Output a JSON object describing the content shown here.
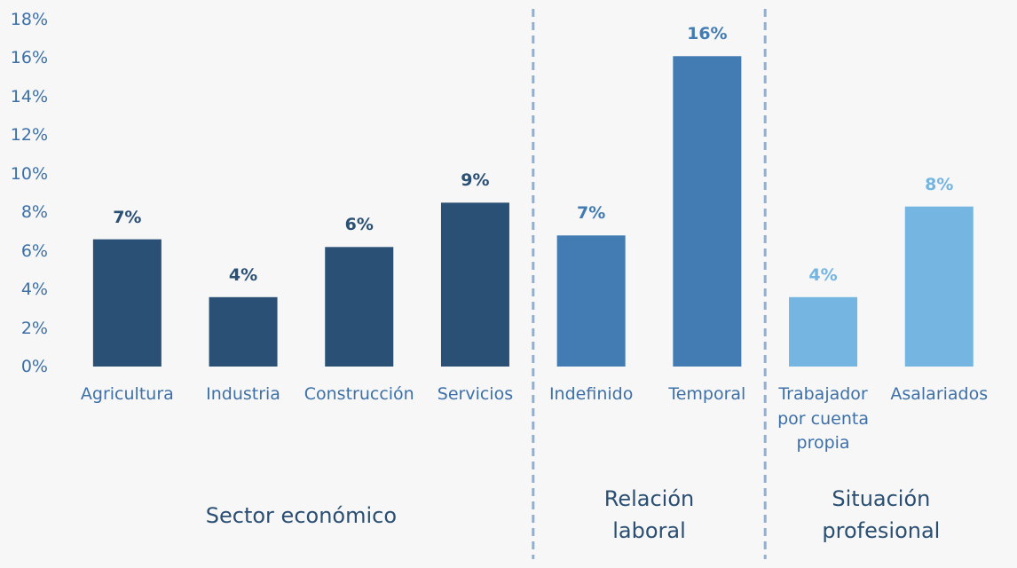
{
  "chart_data": {
    "type": "bar",
    "ylim": [
      0,
      18
    ],
    "yticks": [
      {
        "value": 0,
        "label": "0%"
      },
      {
        "value": 2,
        "label": "2%"
      },
      {
        "value": 4,
        "label": "4%"
      },
      {
        "value": 6,
        "label": "6%"
      },
      {
        "value": 8,
        "label": "8%"
      },
      {
        "value": 10,
        "label": "10%"
      },
      {
        "value": 12,
        "label": "12%"
      },
      {
        "value": 14,
        "label": "14%"
      },
      {
        "value": 16,
        "label": "16%"
      },
      {
        "value": 18,
        "label": "18%"
      }
    ],
    "groups": [
      {
        "name": "Sector económico",
        "color": "#2a5075",
        "categories": [
          "Agricultura",
          "Industria",
          "Construcción",
          "Servicios"
        ],
        "values": [
          6.6,
          3.6,
          6.2,
          8.5
        ],
        "value_labels": [
          "7%",
          "4%",
          "6%",
          "9%"
        ]
      },
      {
        "name": "Relación laboral",
        "color": "#437cb3",
        "categories": [
          "Indefinido",
          "Temporal"
        ],
        "values": [
          6.8,
          16.1
        ],
        "value_labels": [
          "7%",
          "16%"
        ]
      },
      {
        "name": "Situación profesional",
        "color": "#74b5e2",
        "categories": [
          "Trabajador por cuenta propia",
          "Asalariados"
        ],
        "values": [
          3.6,
          8.3
        ],
        "value_labels": [
          "4%",
          "8%"
        ]
      }
    ]
  }
}
